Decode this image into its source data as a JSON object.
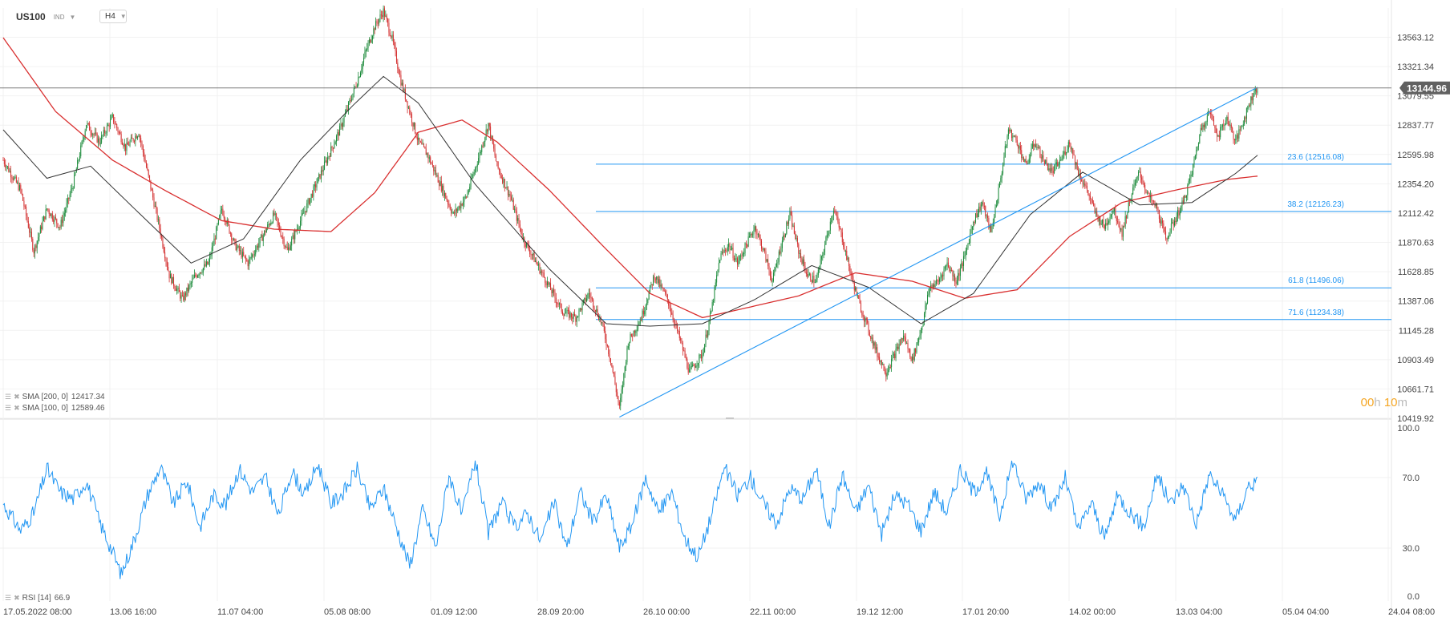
{
  "header": {
    "symbol": "US100",
    "market_tag": "IND",
    "timeframe": "H4"
  },
  "indicators": {
    "sma200": {
      "label": "SMA [200,  0]",
      "value": "12417.34",
      "color": "#d93030"
    },
    "sma100": {
      "label": "SMA [100,  0]",
      "value": "12589.46",
      "color": "#333333"
    },
    "rsi": {
      "label": "RSI [14]",
      "value": "66.9",
      "color": "#2196f3"
    }
  },
  "countdown": {
    "hours": "00",
    "hours_unit": "h",
    "minutes": "10",
    "minutes_unit": "m"
  },
  "chart_data": {
    "type": "candlestick",
    "price_axis": {
      "min": 10419.92,
      "max": 13804.35,
      "ticks": [
        "13563.12",
        "13321.34",
        "13079.55",
        "12837.77",
        "12595.98",
        "12354.20",
        "12112.42",
        "11870.63",
        "11628.85",
        "11387.06",
        "11145.28",
        "10903.49",
        "10661.71",
        "10419.92"
      ]
    },
    "last_price": "13144.96",
    "x_axis_labels": [
      "17.05.2022  08:00",
      "13.06  16:00",
      "11.07  04:00",
      "05.08  08:00",
      "01.09  12:00",
      "28.09  20:00",
      "26.10  00:00",
      "22.11  00:00",
      "19.12  12:00",
      "17.01  20:00",
      "14.02  00:00",
      "13.03  04:00",
      "05.04  04:00",
      "24.04  08:00"
    ],
    "price_series": {
      "step": 4,
      "points": [
        [
          0,
          12550
        ],
        [
          4,
          12300
        ],
        [
          7,
          11800
        ],
        [
          10,
          12150
        ],
        [
          13,
          12000
        ],
        [
          16,
          12350
        ],
        [
          19,
          12850
        ],
        [
          22,
          12700
        ],
        [
          25,
          12900
        ],
        [
          28,
          12650
        ],
        [
          31,
          12780
        ],
        [
          33,
          12450
        ],
        [
          36,
          11950
        ],
        [
          38,
          11600
        ],
        [
          41,
          11400
        ],
        [
          44,
          11600
        ],
        [
          47,
          11700
        ],
        [
          50,
          12150
        ],
        [
          53,
          11850
        ],
        [
          56,
          11700
        ],
        [
          59,
          11900
        ],
        [
          62,
          12100
        ],
        [
          65,
          11800
        ],
        [
          68,
          12050
        ],
        [
          71,
          12300
        ],
        [
          74,
          12550
        ],
        [
          77,
          12800
        ],
        [
          79,
          13000
        ],
        [
          81,
          13200
        ],
        [
          83,
          13450
        ],
        [
          85,
          13650
        ],
        [
          87,
          13780
        ],
        [
          89,
          13550
        ],
        [
          91,
          13200
        ],
        [
          93,
          12950
        ],
        [
          95,
          12700
        ],
        [
          97,
          12600
        ],
        [
          100,
          12350
        ],
        [
          103,
          12100
        ],
        [
          106,
          12250
        ],
        [
          109,
          12600
        ],
        [
          111,
          12850
        ],
        [
          113,
          12500
        ],
        [
          116,
          12250
        ],
        [
          119,
          11900
        ],
        [
          122,
          11700
        ],
        [
          125,
          11500
        ],
        [
          128,
          11300
        ],
        [
          131,
          11250
        ],
        [
          134,
          11450
        ],
        [
          137,
          11200
        ],
        [
          139,
          10900
        ],
        [
          141,
          10500
        ],
        [
          143,
          11050
        ],
        [
          146,
          11250
        ],
        [
          149,
          11600
        ],
        [
          152,
          11400
        ],
        [
          155,
          11050
        ],
        [
          157,
          10800
        ],
        [
          160,
          10950
        ],
        [
          162,
          11300
        ],
        [
          164,
          11750
        ],
        [
          166,
          11850
        ],
        [
          168,
          11700
        ],
        [
          170,
          11850
        ],
        [
          172,
          12000
        ],
        [
          174,
          11800
        ],
        [
          176,
          11550
        ],
        [
          178,
          11850
        ],
        [
          180,
          12100
        ],
        [
          182,
          11800
        ],
        [
          184,
          11600
        ],
        [
          186,
          11550
        ],
        [
          188,
          11850
        ],
        [
          190,
          12150
        ],
        [
          192,
          11900
        ],
        [
          194,
          11600
        ],
        [
          196,
          11350
        ],
        [
          198,
          11150
        ],
        [
          200,
          10950
        ],
        [
          202,
          10800
        ],
        [
          204,
          10950
        ],
        [
          206,
          11100
        ],
        [
          208,
          10900
        ],
        [
          210,
          11150
        ],
        [
          212,
          11500
        ],
        [
          214,
          11550
        ],
        [
          216,
          11700
        ],
        [
          218,
          11550
        ],
        [
          220,
          11750
        ],
        [
          222,
          12050
        ],
        [
          224,
          12200
        ],
        [
          226,
          11950
        ],
        [
          228,
          12350
        ],
        [
          230,
          12800
        ],
        [
          232,
          12700
        ],
        [
          234,
          12500
        ],
        [
          236,
          12700
        ],
        [
          238,
          12550
        ],
        [
          240,
          12450
        ],
        [
          242,
          12550
        ],
        [
          244,
          12700
        ],
        [
          246,
          12450
        ],
        [
          248,
          12300
        ],
        [
          250,
          12100
        ],
        [
          252,
          12000
        ],
        [
          254,
          12150
        ],
        [
          256,
          11950
        ],
        [
          258,
          12250
        ],
        [
          260,
          12450
        ],
        [
          262,
          12250
        ],
        [
          264,
          12150
        ],
        [
          266,
          11900
        ],
        [
          268,
          12050
        ],
        [
          270,
          12200
        ],
        [
          272,
          12450
        ],
        [
          274,
          12800
        ],
        [
          276,
          12950
        ],
        [
          278,
          12750
        ],
        [
          280,
          12900
        ],
        [
          282,
          12700
        ],
        [
          284,
          12900
        ],
        [
          286,
          13100
        ],
        [
          287,
          13144.96
        ]
      ]
    },
    "sma200_series": {
      "step": 4,
      "points": [
        [
          0,
          13560
        ],
        [
          12,
          12950
        ],
        [
          25,
          12550
        ],
        [
          37,
          12300
        ],
        [
          50,
          12050
        ],
        [
          62,
          11980
        ],
        [
          75,
          11960
        ],
        [
          85,
          12280
        ],
        [
          95,
          12780
        ],
        [
          105,
          12880
        ],
        [
          113,
          12700
        ],
        [
          125,
          12300
        ],
        [
          137,
          11850
        ],
        [
          148,
          11450
        ],
        [
          160,
          11250
        ],
        [
          170,
          11330
        ],
        [
          182,
          11430
        ],
        [
          195,
          11620
        ],
        [
          208,
          11550
        ],
        [
          220,
          11410
        ],
        [
          232,
          11480
        ],
        [
          244,
          11920
        ],
        [
          256,
          12200
        ],
        [
          268,
          12300
        ],
        [
          280,
          12390
        ],
        [
          287,
          12417.34
        ]
      ]
    },
    "sma100_series": {
      "step": 4,
      "points": [
        [
          0,
          12800
        ],
        [
          10,
          12400
        ],
        [
          20,
          12500
        ],
        [
          30,
          12150
        ],
        [
          43,
          11700
        ],
        [
          55,
          11900
        ],
        [
          68,
          12550
        ],
        [
          80,
          13000
        ],
        [
          87,
          13240
        ],
        [
          95,
          13020
        ],
        [
          108,
          12350
        ],
        [
          125,
          11650
        ],
        [
          138,
          11200
        ],
        [
          148,
          11180
        ],
        [
          160,
          11200
        ],
        [
          172,
          11400
        ],
        [
          185,
          11680
        ],
        [
          198,
          11500
        ],
        [
          210,
          11200
        ],
        [
          222,
          11450
        ],
        [
          235,
          12100
        ],
        [
          247,
          12450
        ],
        [
          260,
          12180
        ],
        [
          272,
          12200
        ],
        [
          282,
          12440
        ],
        [
          287,
          12589.46
        ]
      ]
    },
    "fibonacci": [
      {
        "label": "23.6 (12516.08)",
        "value": 12516.08
      },
      {
        "label": "38.2 (12126.23)",
        "value": 12126.23
      },
      {
        "label": "61.8 (11496.06)",
        "value": 11496.06
      },
      {
        "label": "71.6 (11234.38)",
        "value": 11234.38
      }
    ],
    "trendline": {
      "from": [
        141,
        10430
      ],
      "to": [
        287,
        13150
      ],
      "color": "#2196f3"
    },
    "rsi_axis": {
      "min": 0,
      "max": 100,
      "ticks": [
        "100.0",
        "70.0",
        "30.0",
        "0.0"
      ]
    },
    "rsi_series": {
      "step": 4,
      "points": [
        [
          0,
          55
        ],
        [
          4,
          40
        ],
        [
          7,
          50
        ],
        [
          10,
          75
        ],
        [
          13,
          62
        ],
        [
          16,
          58
        ],
        [
          19,
          68
        ],
        [
          22,
          45
        ],
        [
          25,
          28
        ],
        [
          27,
          15
        ],
        [
          30,
          35
        ],
        [
          33,
          60
        ],
        [
          36,
          76
        ],
        [
          39,
          55
        ],
        [
          42,
          68
        ],
        [
          45,
          42
        ],
        [
          48,
          60
        ],
        [
          51,
          55
        ],
        [
          54,
          75
        ],
        [
          57,
          62
        ],
        [
          60,
          70
        ],
        [
          63,
          48
        ],
        [
          66,
          74
        ],
        [
          69,
          60
        ],
        [
          72,
          78
        ],
        [
          75,
          55
        ],
        [
          78,
          62
        ],
        [
          81,
          75
        ],
        [
          84,
          52
        ],
        [
          87,
          64
        ],
        [
          90,
          42
        ],
        [
          93,
          20
        ],
        [
          96,
          52
        ],
        [
          99,
          30
        ],
        [
          102,
          72
        ],
        [
          105,
          48
        ],
        [
          108,
          80
        ],
        [
          111,
          38
        ],
        [
          114,
          56
        ],
        [
          117,
          42
        ],
        [
          120,
          50
        ],
        [
          123,
          34
        ],
        [
          126,
          56
        ],
        [
          129,
          30
        ],
        [
          132,
          62
        ],
        [
          135,
          45
        ],
        [
          138,
          60
        ],
        [
          141,
          30
        ],
        [
          144,
          44
        ],
        [
          147,
          70
        ],
        [
          150,
          50
        ],
        [
          153,
          62
        ],
        [
          156,
          35
        ],
        [
          159,
          25
        ],
        [
          162,
          48
        ],
        [
          165,
          76
        ],
        [
          168,
          60
        ],
        [
          171,
          70
        ],
        [
          174,
          55
        ],
        [
          177,
          44
        ],
        [
          180,
          64
        ],
        [
          183,
          58
        ],
        [
          186,
          75
        ],
        [
          189,
          42
        ],
        [
          192,
          72
        ],
        [
          195,
          50
        ],
        [
          198,
          66
        ],
        [
          201,
          38
        ],
        [
          204,
          60
        ],
        [
          207,
          55
        ],
        [
          210,
          40
        ],
        [
          213,
          62
        ],
        [
          216,
          50
        ],
        [
          219,
          75
        ],
        [
          222,
          62
        ],
        [
          225,
          72
        ],
        [
          228,
          48
        ],
        [
          231,
          80
        ],
        [
          234,
          58
        ],
        [
          237,
          68
        ],
        [
          240,
          52
        ],
        [
          243,
          70
        ],
        [
          246,
          40
        ],
        [
          249,
          56
        ],
        [
          252,
          35
        ],
        [
          255,
          60
        ],
        [
          258,
          50
        ],
        [
          261,
          42
        ],
        [
          264,
          72
        ],
        [
          267,
          55
        ],
        [
          270,
          66
        ],
        [
          273,
          44
        ],
        [
          276,
          72
        ],
        [
          279,
          60
        ],
        [
          282,
          46
        ],
        [
          285,
          66
        ],
        [
          287,
          66.9
        ]
      ]
    }
  }
}
